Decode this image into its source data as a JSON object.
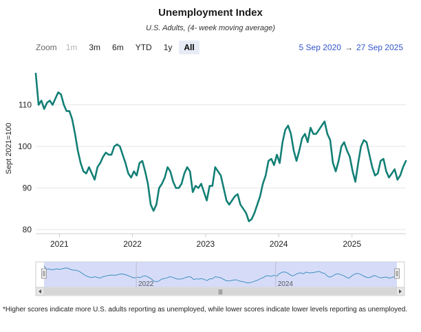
{
  "header": {
    "title": "Unemployment Index",
    "subtitle": "U.S. Adults, (4- week moving average)"
  },
  "zoom": {
    "label": "Zoom",
    "buttons": [
      {
        "label": "1m",
        "state": "disabled"
      },
      {
        "label": "3m",
        "state": "normal"
      },
      {
        "label": "6m",
        "state": "normal"
      },
      {
        "label": "YTD",
        "state": "normal"
      },
      {
        "label": "1y",
        "state": "normal"
      },
      {
        "label": "All",
        "state": "active"
      }
    ]
  },
  "range": {
    "from": "5 Sep 2020",
    "arrow": "→",
    "to": "27 Sep 2025"
  },
  "navigator": {
    "year_labels": [
      "2022",
      "2024"
    ],
    "scroll_icon": "|||"
  },
  "footnote": "*Higher scores indicate more U.S. adults reporting as unemployed, while lower scores indicate lower levels reporting as unemployed.",
  "colors": {
    "line": "#127f75",
    "navigator_fill": "#cfd6f7",
    "navigator_line": "#3f8fbf",
    "grid": "#e6e6e6"
  },
  "chart_data": {
    "type": "line",
    "ylabel": "Sept 2021=100",
    "ylim": [
      79,
      120
    ],
    "yticks": [
      80,
      90,
      100,
      110
    ],
    "xlim": [
      "2020-09-05",
      "2025-09-27"
    ],
    "xticks": [
      "2021",
      "2022",
      "2023",
      "2024",
      "2025"
    ],
    "grid": "horizontal",
    "series": [
      {
        "x": [
          "2020-09-05",
          "2020-09-19",
          "2020-10-03",
          "2020-10-17",
          "2020-10-31",
          "2020-11-14",
          "2020-11-28",
          "2020-12-12",
          "2020-12-26",
          "2021-01-09",
          "2021-01-23",
          "2021-02-06",
          "2021-02-20",
          "2021-03-06",
          "2021-03-20",
          "2021-04-03",
          "2021-04-17",
          "2021-05-01",
          "2021-05-15",
          "2021-05-29",
          "2021-06-12",
          "2021-06-26",
          "2021-07-10",
          "2021-07-24",
          "2021-08-07",
          "2021-08-21",
          "2021-09-04",
          "2021-09-18",
          "2021-10-02",
          "2021-10-16",
          "2021-10-30",
          "2021-11-13",
          "2021-11-27",
          "2021-12-11",
          "2021-12-25",
          "2022-01-08",
          "2022-01-22",
          "2022-02-05",
          "2022-02-19",
          "2022-03-05",
          "2022-03-19",
          "2022-04-02",
          "2022-04-16",
          "2022-04-30",
          "2022-05-14",
          "2022-05-28",
          "2022-06-11",
          "2022-06-25",
          "2022-07-09",
          "2022-07-23",
          "2022-08-06",
          "2022-08-20",
          "2022-09-03",
          "2022-09-17",
          "2022-10-01",
          "2022-10-15",
          "2022-10-29",
          "2022-11-12",
          "2022-11-26",
          "2022-12-10",
          "2022-12-24",
          "2023-01-07",
          "2023-01-21",
          "2023-02-04",
          "2023-02-18",
          "2023-03-04",
          "2023-03-18",
          "2023-04-01",
          "2023-04-15",
          "2023-04-29",
          "2023-05-13",
          "2023-05-27",
          "2023-06-10",
          "2023-06-24",
          "2023-07-08",
          "2023-07-22",
          "2023-08-05",
          "2023-08-19",
          "2023-09-02",
          "2023-09-16",
          "2023-09-30",
          "2023-10-14",
          "2023-10-28",
          "2023-11-11",
          "2023-11-25",
          "2023-12-09",
          "2023-12-23",
          "2024-01-06",
          "2024-01-20",
          "2024-02-03",
          "2024-02-17",
          "2024-03-02",
          "2024-03-16",
          "2024-03-30",
          "2024-04-13",
          "2024-04-27",
          "2024-05-11",
          "2024-05-25",
          "2024-06-08",
          "2024-06-22",
          "2024-07-06",
          "2024-07-20",
          "2024-08-03",
          "2024-08-17",
          "2024-08-31",
          "2024-09-14",
          "2024-09-28",
          "2024-10-12",
          "2024-10-26",
          "2024-11-09",
          "2024-11-23",
          "2024-12-07",
          "2024-12-21",
          "2025-01-04",
          "2025-01-18",
          "2025-02-01",
          "2025-02-15",
          "2025-03-01",
          "2025-03-15",
          "2025-03-29",
          "2025-04-12",
          "2025-04-26",
          "2025-05-10",
          "2025-05-24",
          "2025-06-07",
          "2025-06-21",
          "2025-07-05",
          "2025-07-19",
          "2025-08-02",
          "2025-08-16",
          "2025-08-30",
          "2025-09-13",
          "2025-09-27"
        ],
        "y": [
          117.5,
          110,
          111,
          109,
          110.5,
          111,
          110,
          111.5,
          113,
          112.5,
          110,
          108.5,
          108.5,
          106.5,
          103,
          99,
          96,
          94,
          93.5,
          95,
          93.5,
          92,
          95,
          96,
          97.5,
          98.5,
          98,
          98,
          100,
          100.5,
          100,
          98,
          96,
          93.5,
          92.5,
          94,
          93,
          96,
          96.5,
          94,
          91,
          86,
          84.5,
          86,
          90,
          91,
          92.5,
          95,
          94,
          91.5,
          90,
          90,
          91,
          93.5,
          95,
          94,
          89,
          90.5,
          90,
          91,
          89,
          87,
          90.5,
          90.5,
          95,
          94,
          93,
          90,
          87,
          86,
          87,
          88,
          88.5,
          86,
          85,
          84,
          82,
          82.5,
          84,
          86,
          88,
          91,
          93,
          96.5,
          97,
          95.5,
          98,
          96,
          101,
          104,
          105,
          103,
          99,
          96.5,
          99,
          102,
          103,
          101,
          104.5,
          103,
          103,
          104,
          105,
          106,
          103,
          101.5,
          96,
          94,
          96.5,
          100,
          101,
          99,
          97.5,
          94,
          91.5,
          96,
          100,
          101.5,
          101,
          98,
          95,
          93,
          93.5,
          96.5,
          97,
          94,
          92.5,
          93.5,
          94.5,
          92,
          93,
          95,
          96.5
        ]
      }
    ]
  }
}
